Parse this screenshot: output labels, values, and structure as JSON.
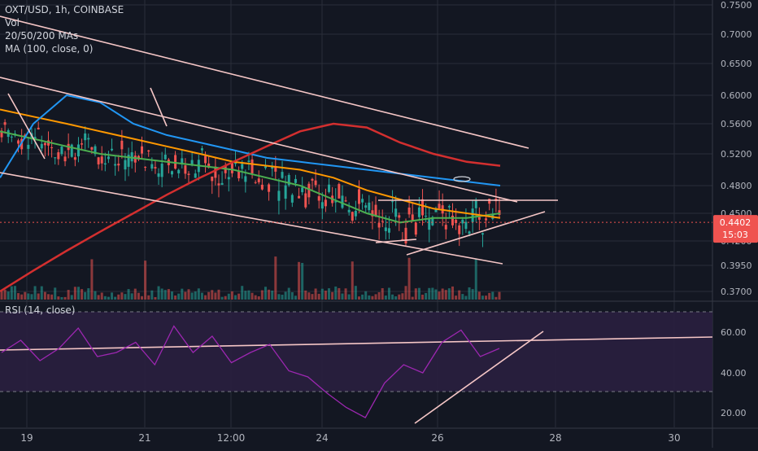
{
  "header": {
    "symbol": "OXT/USD, 1h, COINBASE",
    "vol": "Vol",
    "mas": "20/50/200 MAs",
    "ma100": "MA (100, close, 0)"
  },
  "rsi_label": "RSI (14, close)",
  "colors": {
    "background": "#131722",
    "grid": "#2a2e39",
    "candle_up": "#26a69a",
    "candle_down": "#ef5350",
    "ma20": "#4caf50",
    "ma50": "#ff9800",
    "ma100": "#2196f3",
    "ma200": "#d32f2f",
    "trendline": "#f5c6c6",
    "rsi_line": "#9c27b0",
    "rsi_band": "#2a1f3f",
    "price_tag": "#ef5350"
  },
  "chart_data": [
    {
      "type": "candlestick",
      "title": "OXT/USD, 1h, COINBASE",
      "y_ticks": [
        "0.7500",
        "0.7000",
        "0.6500",
        "0.6000",
        "0.5600",
        "0.5200",
        "0.4800",
        "0.4500",
        "0.4200",
        "0.3950",
        "0.3700"
      ],
      "x_ticks": [
        "19",
        "21",
        "12:00",
        "24",
        "26",
        "28",
        "30"
      ],
      "last_price": "0.4402",
      "countdown": "15:03",
      "series": [
        {
          "name": "MA 20",
          "values": [
            0.55,
            0.54,
            0.53,
            0.52,
            0.515,
            0.51,
            0.505,
            0.5,
            0.49,
            0.48,
            0.465,
            0.45,
            0.44,
            0.445,
            0.445,
            0.45
          ]
        },
        {
          "name": "MA 50",
          "values": [
            0.58,
            0.57,
            0.56,
            0.55,
            0.54,
            0.53,
            0.52,
            0.51,
            0.505,
            0.5,
            0.49,
            0.475,
            0.465,
            0.455,
            0.45,
            0.445
          ]
        },
        {
          "name": "MA 100",
          "values": [
            0.49,
            0.56,
            0.6,
            0.59,
            0.56,
            0.545,
            0.535,
            0.525,
            0.515,
            0.51,
            0.505,
            0.5,
            0.495,
            0.49,
            0.485,
            0.48
          ]
        },
        {
          "name": "MA 200",
          "values": [
            0.37,
            0.39,
            0.41,
            0.43,
            0.45,
            0.47,
            0.49,
            0.51,
            0.53,
            0.55,
            0.56,
            0.555,
            0.535,
            0.52,
            0.51,
            0.505
          ]
        }
      ]
    },
    {
      "type": "line",
      "title": "RSI (14, close)",
      "y_ticks": [
        "60.00",
        "40.00",
        "20.00"
      ],
      "ylim": [
        10,
        75
      ],
      "bands": [
        70,
        30
      ],
      "values": [
        50,
        56,
        46,
        52,
        62,
        48,
        50,
        55,
        44,
        63,
        50,
        58,
        45,
        50,
        54,
        41,
        38,
        30,
        23,
        18,
        35,
        44,
        40,
        55,
        61,
        48,
        52
      ]
    }
  ]
}
